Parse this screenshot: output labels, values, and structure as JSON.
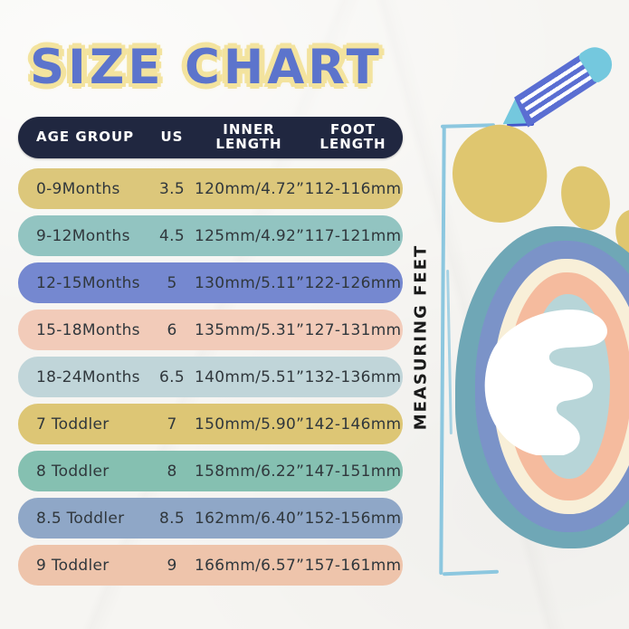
{
  "title": {
    "text": "SIZE CHART"
  },
  "chart_data": {
    "type": "table",
    "title": "SIZE CHART",
    "columns": [
      "AGE GROUP",
      "US",
      "INNER\nLENGTH",
      "FOOT\nLENGTH"
    ],
    "rows": [
      {
        "age_group": "0-9Months",
        "us": "3.5",
        "inner_length": "120mm/4.72”",
        "foot_length": "112-116mm",
        "row_color": "#dcc77b"
      },
      {
        "age_group": "9-12Months",
        "us": "4.5",
        "inner_length": "125mm/4.92”",
        "foot_length": "117-121mm",
        "row_color": "#92c4c1"
      },
      {
        "age_group": "12-15Months",
        "us": "5",
        "inner_length": "130mm/5.11”",
        "foot_length": "122-126mm",
        "row_color": "#7588d0"
      },
      {
        "age_group": "15-18Months",
        "us": "6",
        "inner_length": "135mm/5.31”",
        "foot_length": "127-131mm",
        "row_color": "#f2cbb9"
      },
      {
        "age_group": "18-24Months",
        "us": "6.5",
        "inner_length": "140mm/5.51”",
        "foot_length": "132-136mm",
        "row_color": "#c0d5d9"
      },
      {
        "age_group": "7 Toddler",
        "us": "7",
        "inner_length": "150mm/5.90”",
        "foot_length": "142-146mm",
        "row_color": "#ddc675"
      },
      {
        "age_group": "8 Toddler",
        "us": "8",
        "inner_length": "158mm/6.22”",
        "foot_length": "147-151mm",
        "row_color": "#85c0b1"
      },
      {
        "age_group": "8.5 Toddler",
        "us": "8.5",
        "inner_length": "162mm/6.40”",
        "foot_length": "152-156mm",
        "row_color": "#8fa7c7"
      },
      {
        "age_group": "9 Toddler",
        "us": "9",
        "inner_length": "166mm/6.57”",
        "foot_length": "157-161mm",
        "row_color": "#eec4ab"
      }
    ]
  },
  "side_label": {
    "text": "MEASURING FEET"
  },
  "palette": {
    "title-blue": "#5c74cc",
    "title-halo": "#f3e39e",
    "header-bg": "#202740",
    "header-text": "#ffffff",
    "row-text": "#30373c",
    "bracket-blue": "#8cc7df",
    "pencil-body": "#5a6ed2",
    "pencil-accent": "#74c8de",
    "pencil-dark": "#4457c9",
    "toe-yellow": "#dfc66f",
    "ring-teal": "#6fa7b6",
    "ring-blue": "#7b93c8",
    "ring-cream": "#f8efd8",
    "ring-peach": "#f5bb9e",
    "foot-center": "#b7d5d8",
    "label-ink": "#1b1b1b"
  }
}
